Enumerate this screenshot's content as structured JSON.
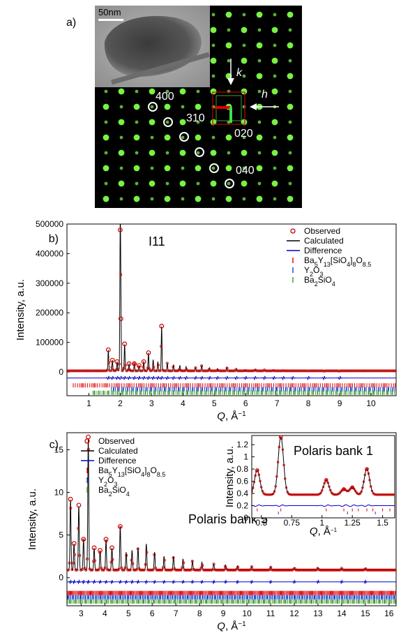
{
  "panel_a": {
    "letter": "a)",
    "scale_bar": "50nm",
    "k_label": "k",
    "h_label": "h",
    "reflections": [
      "400",
      "310",
      "020",
      "040"
    ]
  },
  "chart_data": [
    {
      "type": "line",
      "panel": "b)",
      "label": "I11",
      "xlabel_main": "Q",
      "xlabel_unit": ", Å",
      "xlabel_sup": "−1",
      "ylabel": "Intensity, a.u.",
      "xlim": [
        0.3,
        10.8
      ],
      "ylim": [
        -80000,
        500000
      ],
      "xticks": [
        1,
        2,
        3,
        4,
        5,
        6,
        7,
        8,
        9,
        10
      ],
      "yticks": [
        0,
        100000,
        200000,
        300000,
        400000,
        500000
      ],
      "legend": {
        "position": "top-right",
        "observed": "Observed",
        "calculated": "Calculated",
        "difference": "Difference",
        "phase1": {
          "parts": [
            [
              "Ba",
              ""
            ],
            [
              "5",
              "sub"
            ],
            [
              "Y",
              ""
            ],
            [
              "13",
              "sub"
            ],
            [
              "[SiO",
              ""
            ],
            [
              "4",
              "sub"
            ],
            [
              "]",
              ""
            ],
            [
              "8",
              "sub"
            ],
            [
              "O",
              ""
            ],
            [
              "8.5",
              "sub"
            ]
          ]
        },
        "phase2": {
          "parts": [
            [
              "Y",
              ""
            ],
            [
              "2",
              "sub"
            ],
            [
              "O",
              ""
            ],
            [
              "3",
              "sub"
            ]
          ]
        },
        "phase3": {
          "parts": [
            [
              "Ba",
              ""
            ],
            [
              "2",
              "sub"
            ],
            [
              "SiO",
              ""
            ],
            [
              "4",
              "sub"
            ]
          ]
        }
      },
      "colors": {
        "observed": "#cc0000",
        "calculated": "#000000",
        "difference": "#0000cc",
        "phase1": "#e00000",
        "phase2": "#1a3fd6",
        "phase3": "#3a9a2a"
      },
      "background": 4000,
      "peaks": [
        [
          2.0,
          480000
        ],
        [
          2.02,
          180000
        ],
        [
          3.32,
          155000
        ],
        [
          2.14,
          95000
        ],
        [
          1.62,
          75000
        ],
        [
          2.9,
          65000
        ],
        [
          1.75,
          40000
        ],
        [
          1.9,
          35000
        ],
        [
          2.28,
          28000
        ],
        [
          2.45,
          28000
        ],
        [
          2.6,
          22000
        ],
        [
          2.75,
          35000
        ],
        [
          3.05,
          42000
        ],
        [
          3.2,
          35000
        ],
        [
          3.5,
          30000
        ],
        [
          3.7,
          25000
        ],
        [
          3.9,
          22000
        ],
        [
          4.1,
          18000
        ],
        [
          4.4,
          15000
        ],
        [
          4.6,
          22000
        ],
        [
          4.85,
          15000
        ],
        [
          5.1,
          12000
        ],
        [
          5.4,
          15000
        ],
        [
          5.7,
          10000
        ],
        [
          6.0,
          8000
        ],
        [
          6.3,
          9000
        ],
        [
          6.6,
          7000
        ],
        [
          6.9,
          6000
        ],
        [
          7.2,
          5000
        ],
        [
          7.5,
          4000
        ],
        [
          8.0,
          3500
        ],
        [
          8.5,
          3000
        ],
        [
          9.0,
          2500
        ]
      ],
      "difference_offset": -20000,
      "tick_rows": {
        "phase1": -45000,
        "phase2": -58000,
        "phase3": -70000
      },
      "tick_ranges": {
        "phase1": [
          0.5,
          10.8
        ],
        "phase2": [
          1.7,
          10.8
        ],
        "phase3": [
          1.1,
          10.8
        ]
      }
    },
    {
      "type": "line",
      "panel": "c)",
      "label": "Polaris bank 5",
      "xlabel_main": "Q",
      "xlabel_unit": ", Å",
      "xlabel_sup": "−1",
      "ylabel": "Intensity, a.u.",
      "xlim": [
        2.4,
        16.3
      ],
      "ylim": [
        -3.3,
        17
      ],
      "xticks": [
        3,
        4,
        5,
        6,
        7,
        8,
        9,
        10,
        11,
        12,
        13,
        14,
        15,
        16
      ],
      "yticks": [
        0,
        5,
        10,
        15
      ],
      "legend": {
        "position": "top-left",
        "observed": "Observed",
        "calculated": "Calculated",
        "difference": "Difference",
        "phase1": {
          "parts": [
            [
              "Ba",
              ""
            ],
            [
              "5",
              "sub"
            ],
            [
              "Y",
              ""
            ],
            [
              "13",
              "sub"
            ],
            [
              "[SiO",
              ""
            ],
            [
              "4",
              "sub"
            ],
            [
              "]",
              ""
            ],
            [
              "8",
              "sub"
            ],
            [
              "O",
              ""
            ],
            [
              "8.5",
              "sub"
            ]
          ]
        },
        "phase2": {
          "parts": [
            [
              "Y",
              ""
            ],
            [
              "2",
              "sub"
            ],
            [
              "O",
              ""
            ],
            [
              "3",
              "sub"
            ]
          ]
        },
        "phase3": {
          "parts": [
            [
              "Ba",
              ""
            ],
            [
              "2",
              "sub"
            ],
            [
              "SiO",
              ""
            ],
            [
              "4",
              "sub"
            ]
          ]
        }
      },
      "colors": {
        "observed": "#cc0000",
        "calculated": "#000000",
        "difference": "#0000cc",
        "phase1": "#e00000",
        "phase2": "#1a3fd6",
        "phase3": "#3a9a2a"
      },
      "background": 0.9,
      "peaks": [
        [
          2.55,
          9.2
        ],
        [
          2.9,
          8.5
        ],
        [
          3.3,
          16.5
        ],
        [
          2.7,
          4.0
        ],
        [
          3.1,
          4.5
        ],
        [
          3.55,
          3.5
        ],
        [
          3.8,
          3.2
        ],
        [
          4.05,
          4.5
        ],
        [
          4.3,
          3.5
        ],
        [
          4.65,
          6.0
        ],
        [
          4.9,
          3.0
        ],
        [
          5.15,
          3.2
        ],
        [
          5.4,
          3.5
        ],
        [
          5.75,
          4.0
        ],
        [
          6.1,
          3.0
        ],
        [
          6.5,
          2.5
        ],
        [
          6.9,
          2.5
        ],
        [
          7.3,
          2.2
        ],
        [
          7.7,
          2.0
        ],
        [
          8.1,
          1.8
        ],
        [
          8.6,
          1.6
        ],
        [
          9.1,
          1.5
        ],
        [
          9.6,
          1.4
        ],
        [
          10.2,
          1.3
        ],
        [
          11.0,
          1.25
        ],
        [
          12.0,
          1.2
        ],
        [
          13.0,
          1.15
        ],
        [
          14.0,
          1.1
        ],
        [
          15.0,
          1.1
        ]
      ],
      "difference_offset": -0.5,
      "tick_rows": {
        "phase1": -1.8,
        "phase2": -2.3,
        "phase3": -2.8
      },
      "tick_ranges": {
        "phase1": [
          2.4,
          16.3
        ],
        "phase2": [
          2.4,
          16.3
        ],
        "phase3": [
          2.4,
          16.3
        ]
      }
    },
    {
      "type": "line",
      "panel": "inset",
      "label": "Polaris bank 1",
      "xlabel_main": "Q",
      "xlabel_unit": ", Å",
      "xlabel_sup": "−1",
      "ylabel": "Intensity, a.u.",
      "xlim": [
        0.42,
        1.6
      ],
      "ylim": [
        0,
        1.35
      ],
      "xticks": [
        0.5,
        0.75,
        1,
        1.25,
        1.5
      ],
      "xtick_labels": [
        "0.5",
        "0.75",
        "1",
        "1.25",
        "1.5"
      ],
      "yticks": [
        0,
        0.2,
        0.4,
        0.6,
        0.8,
        1,
        1.2
      ],
      "ytick_labels": [
        "0",
        "0.2",
        "0.4",
        "0.6",
        "0.8",
        "1",
        "1.2"
      ],
      "background": 0.38,
      "peaks": [
        [
          0.465,
          0.78
        ],
        [
          0.66,
          1.33
        ],
        [
          1.035,
          0.62
        ],
        [
          1.18,
          0.47
        ],
        [
          1.25,
          0.5
        ],
        [
          1.37,
          0.8
        ]
      ],
      "difference_offset": 0.2,
      "tick_rows": {
        "phase1": 0.13,
        "phase2": 0.08
      },
      "ticks_phase1": [
        0.465,
        0.66,
        1.035,
        1.18,
        1.25,
        1.3,
        1.37,
        1.42,
        1.5,
        1.56
      ],
      "ticks_phase2": [
        0.64,
        1.21,
        1.44
      ]
    }
  ]
}
